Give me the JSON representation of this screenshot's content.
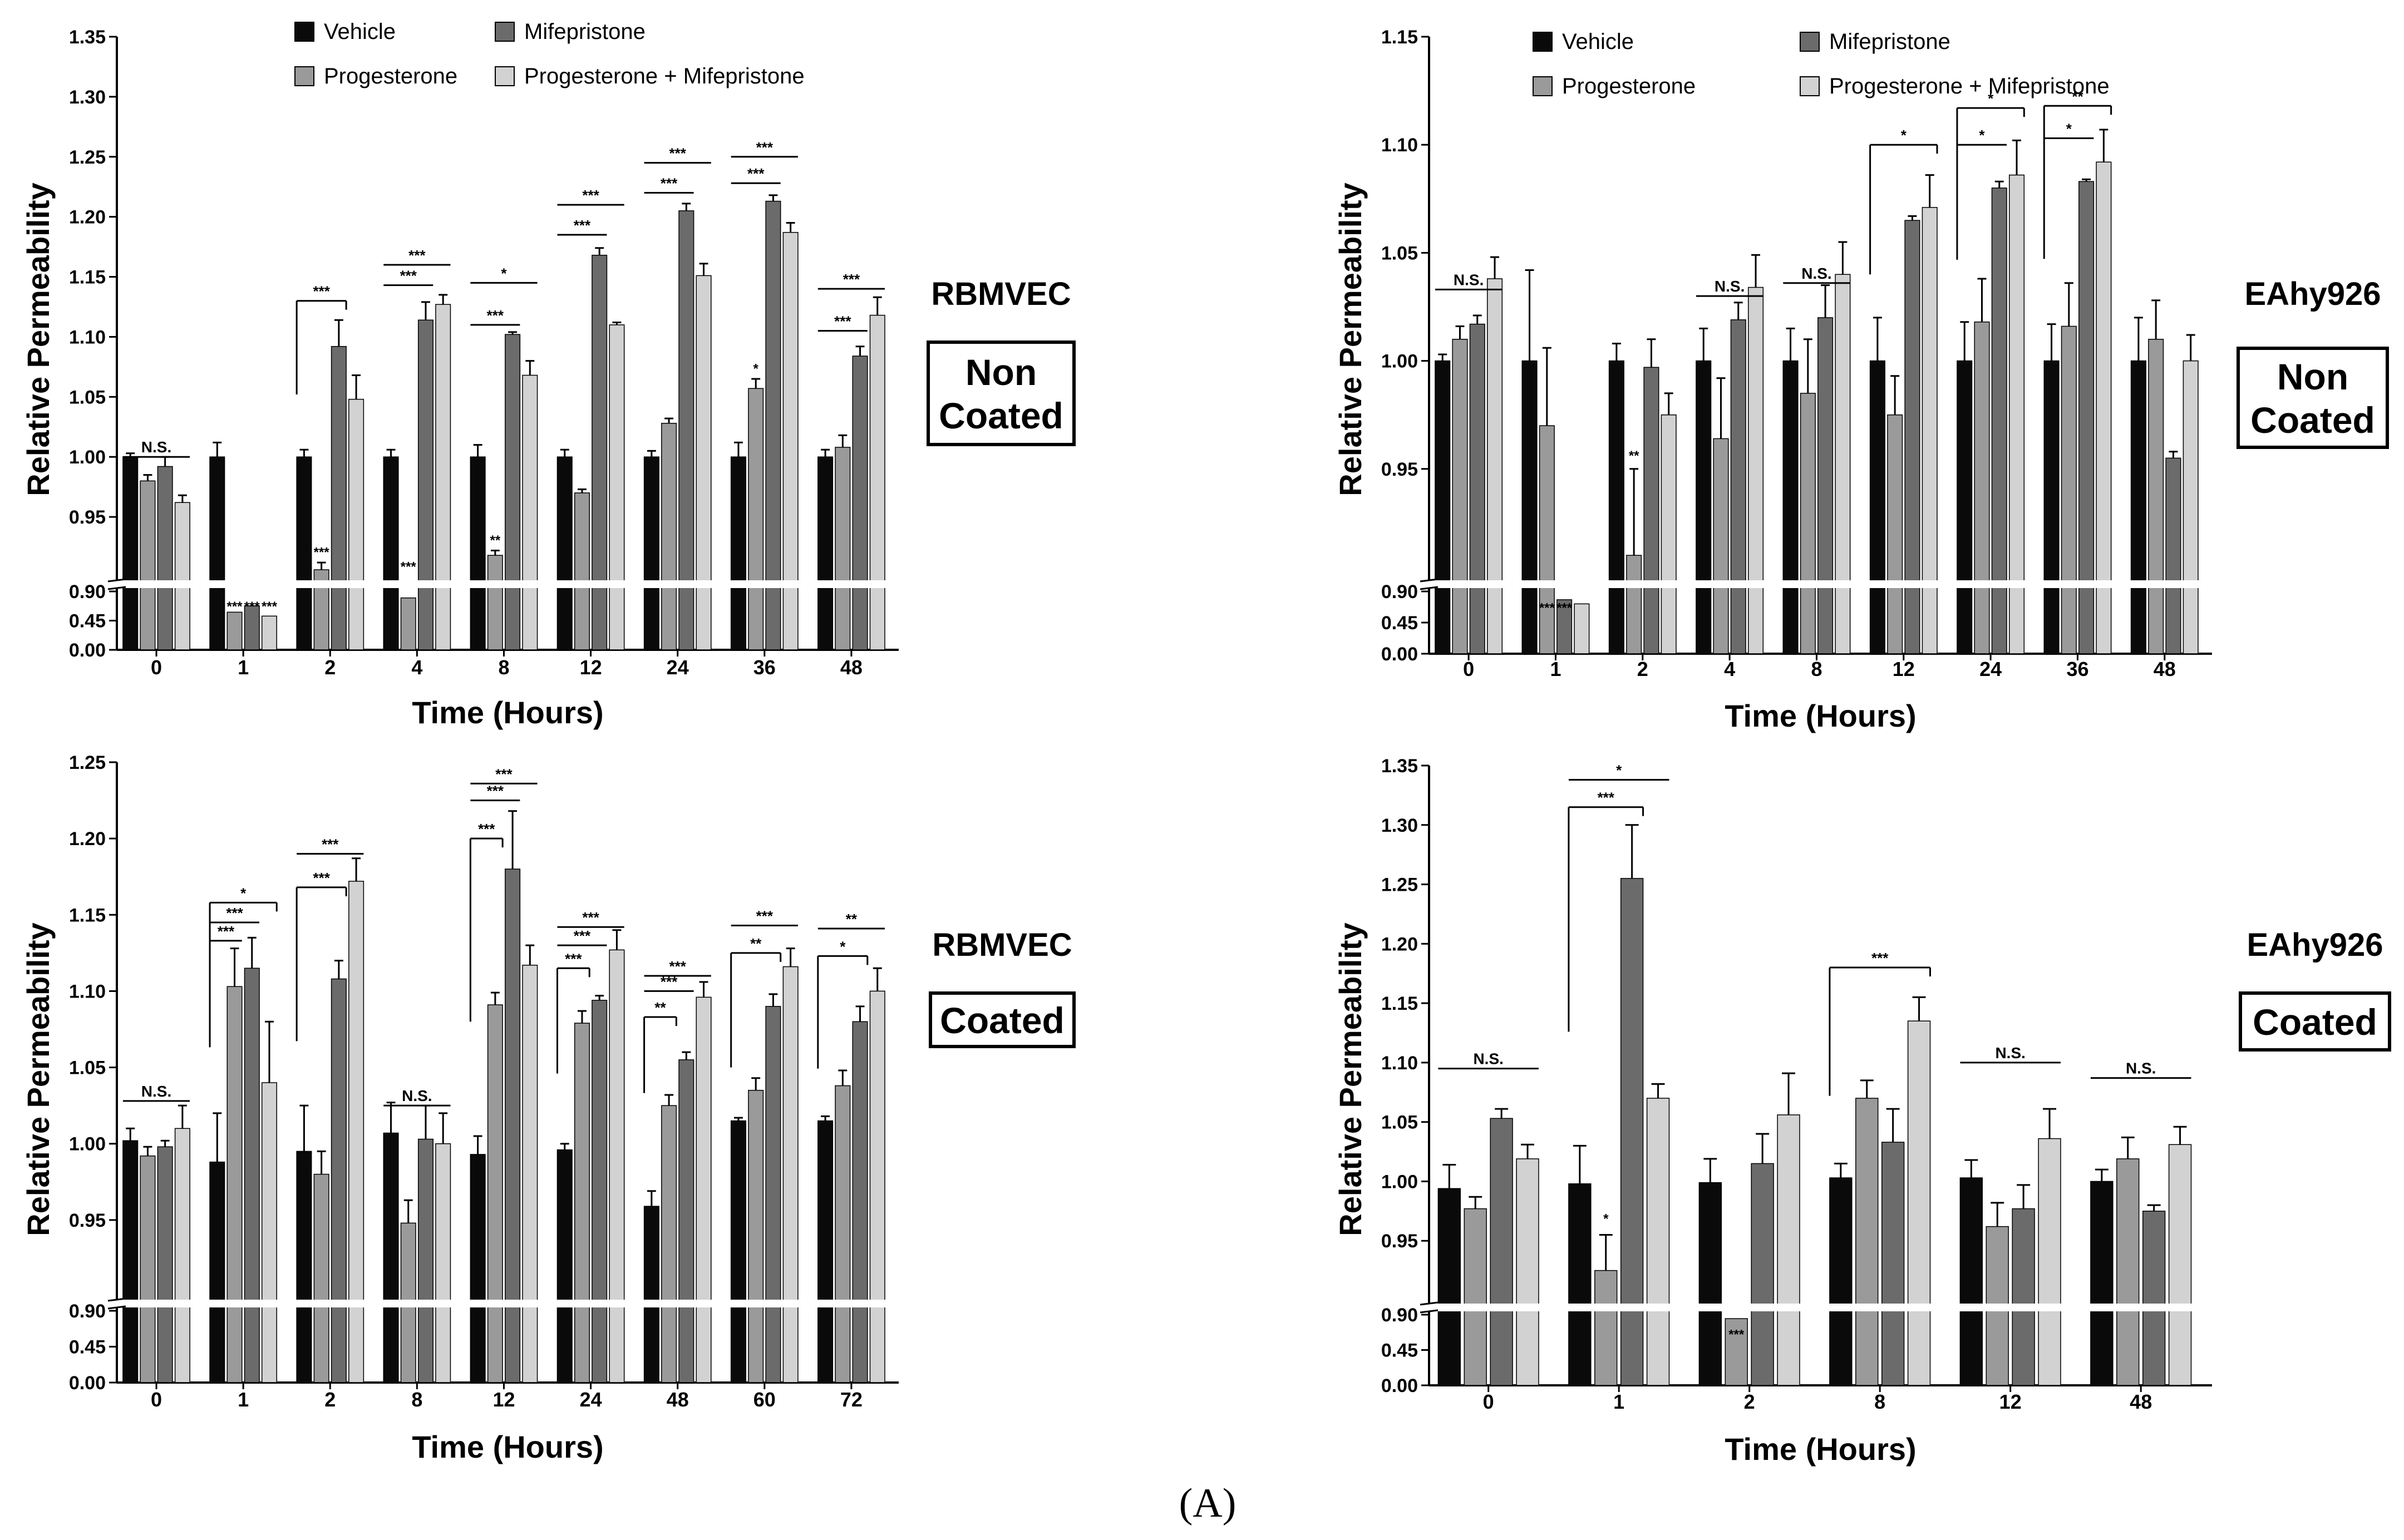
{
  "figure_label": "(A)",
  "colors": {
    "Vehicle": "#0a0a0a",
    "Progesterone": "#9a9a9a",
    "Mifepristone": "#6b6b6b",
    "Progesterone + Mifepristone": "#d2d2d2"
  },
  "chart_data": [
    {
      "type": "bar",
      "cell_line": "RBMVEC",
      "condition": [
        "Non",
        "Coated"
      ],
      "xlabel": "Time (Hours)",
      "ylabel": "Relative Permeability",
      "categories": [
        "0",
        "1",
        "2",
        "4",
        "8",
        "12",
        "24",
        "36",
        "48"
      ],
      "legend": [
        "Vehicle",
        "Progesterone",
        "Mifepristone",
        "Progesterone + Mifepristone"
      ],
      "yticks_low": [
        "0.00",
        "0.45",
        "0.90"
      ],
      "yticks_high": [
        "0.95",
        "1.00",
        "1.05",
        "1.10",
        "1.15",
        "1.20",
        "1.25",
        "1.30",
        "1.35"
      ],
      "ylim_high": [
        0.9,
        1.35
      ],
      "series": [
        {
          "name": "Vehicle",
          "values": [
            1.0,
            1.0,
            1.0,
            1.0,
            1.0,
            1.0,
            1.0,
            1.0,
            1.0
          ],
          "errors": [
            0.003,
            0.012,
            0.006,
            0.006,
            0.01,
            0.006,
            0.005,
            0.012,
            0.006
          ]
        },
        {
          "name": "Progesterone",
          "values": [
            0.98,
            0.58,
            0.906,
            0.8,
            0.918,
            0.97,
            1.028,
            1.057,
            1.008
          ],
          "errors": [
            0.005,
            0.0,
            0.006,
            0.0,
            0.004,
            0.003,
            0.004,
            0.008,
            0.01
          ]
        },
        {
          "name": "Mifepristone",
          "values": [
            0.992,
            0.68,
            1.092,
            1.114,
            1.102,
            1.168,
            1.205,
            1.213,
            1.084
          ],
          "errors": [
            0.008,
            0.0,
            0.022,
            0.015,
            0.002,
            0.006,
            0.006,
            0.005,
            0.008
          ]
        },
        {
          "name": "Progesterone + Mifepristone",
          "values": [
            0.962,
            0.52,
            1.048,
            1.127,
            1.068,
            1.11,
            1.151,
            1.187,
            1.118
          ],
          "errors": [
            0.006,
            0.0,
            0.02,
            0.008,
            0.012,
            0.002,
            0.01,
            0.008,
            0.015
          ]
        }
      ],
      "annotations": [
        {
          "cat": 0,
          "series": [
            0,
            3
          ],
          "y": 1.0,
          "text": "N.S.",
          "label_above": true
        },
        {
          "cat": 1,
          "series": 1,
          "y": 0.0,
          "low": true,
          "text": "***"
        },
        {
          "cat": 1,
          "series": 2,
          "y": 0.0,
          "low": true,
          "text": "***"
        },
        {
          "cat": 1,
          "series": 3,
          "y": 0.0,
          "low": true,
          "text": "***"
        },
        {
          "cat": 2,
          "series": [
            0,
            2
          ],
          "y": 1.13,
          "text": "***",
          "bracket": true
        },
        {
          "cat": 2,
          "series": 1,
          "y": 0.915,
          "text": "***"
        },
        {
          "cat": 3,
          "series": [
            0,
            2
          ],
          "y": 1.143,
          "text": "***"
        },
        {
          "cat": 3,
          "series": [
            0,
            3
          ],
          "y": 1.16,
          "text": "***"
        },
        {
          "cat": 3,
          "series": 1,
          "y": 0.903,
          "text": "***"
        },
        {
          "cat": 4,
          "series": [
            0,
            2
          ],
          "y": 1.11,
          "text": "***"
        },
        {
          "cat": 4,
          "series": [
            0,
            3
          ],
          "y": 1.145,
          "text": "*"
        },
        {
          "cat": 4,
          "series": 1,
          "y": 0.925,
          "text": "**"
        },
        {
          "cat": 5,
          "series": [
            0,
            2
          ],
          "y": 1.185,
          "text": "***"
        },
        {
          "cat": 5,
          "series": [
            0,
            3
          ],
          "y": 1.21,
          "text": "***"
        },
        {
          "cat": 6,
          "series": [
            0,
            2
          ],
          "y": 1.22,
          "text": "***"
        },
        {
          "cat": 6,
          "series": [
            0,
            3
          ],
          "y": 1.245,
          "text": "***"
        },
        {
          "cat": 7,
          "series": 1,
          "y": 1.068,
          "text": "*"
        },
        {
          "cat": 7,
          "series": [
            0,
            2
          ],
          "y": 1.228,
          "text": "***"
        },
        {
          "cat": 7,
          "series": [
            0,
            3
          ],
          "y": 1.25,
          "text": "***"
        },
        {
          "cat": 8,
          "series": [
            0,
            2
          ],
          "y": 1.105,
          "text": "***"
        },
        {
          "cat": 8,
          "series": [
            0,
            3
          ],
          "y": 1.14,
          "text": "***"
        }
      ]
    },
    {
      "type": "bar",
      "cell_line": "EAhy926",
      "condition": [
        "Non",
        "Coated"
      ],
      "xlabel": "Time (Hours)",
      "ylabel": "Relative Permeability",
      "categories": [
        "0",
        "1",
        "2",
        "4",
        "8",
        "12",
        "24",
        "36",
        "48"
      ],
      "legend": [
        "Vehicle",
        "Progesterone",
        "Mifepristone",
        "Progesterone + Mifepristone"
      ],
      "yticks_low": [
        "0.00",
        "0.45",
        "0.90"
      ],
      "yticks_high": [
        "0.95",
        "1.00",
        "1.05",
        "1.10",
        "1.15"
      ],
      "ylim_high": [
        0.9,
        1.15
      ],
      "series": [
        {
          "name": "Vehicle",
          "values": [
            1.0,
            1.0,
            1.0,
            1.0,
            1.0,
            1.0,
            1.0,
            1.0,
            1.0
          ],
          "errors": [
            0.003,
            0.042,
            0.008,
            0.015,
            0.015,
            0.02,
            0.018,
            0.017,
            0.02
          ]
        },
        {
          "name": "Progesterone",
          "values": [
            1.01,
            0.97,
            0.91,
            0.964,
            0.985,
            0.975,
            1.018,
            1.016,
            1.01
          ],
          "errors": [
            0.006,
            0.036,
            0.04,
            0.028,
            0.025,
            0.018,
            0.02,
            0.02,
            0.018
          ]
        },
        {
          "name": "Mifepristone",
          "values": [
            1.017,
            0.78,
            0.997,
            1.019,
            1.02,
            1.065,
            1.08,
            1.083,
            0.955
          ],
          "errors": [
            0.004,
            0.0,
            0.013,
            0.008,
            0.015,
            0.002,
            0.003,
            0.001,
            0.003
          ]
        },
        {
          "name": "Progesterone + Mifepristone",
          "values": [
            1.038,
            0.72,
            0.975,
            1.034,
            1.04,
            1.071,
            1.086,
            1.092,
            1.0
          ],
          "errors": [
            0.01,
            0.0,
            0.01,
            0.015,
            0.015,
            0.015,
            0.016,
            0.015,
            0.012
          ]
        }
      ],
      "annotations": [
        {
          "cat": 0,
          "series": [
            0,
            3
          ],
          "y": 1.033,
          "text": "N.S.",
          "label_above": true
        },
        {
          "cat": 1,
          "series": 1,
          "y": 0.0,
          "low": true,
          "text": "***"
        },
        {
          "cat": 1,
          "series": 2,
          "y": 0.0,
          "low": true,
          "text": "***"
        },
        {
          "cat": 2,
          "series": 1,
          "y": 0.953,
          "text": "**"
        },
        {
          "cat": 3,
          "series": [
            0,
            3
          ],
          "y": 1.03,
          "text": "N.S.",
          "label_above": true
        },
        {
          "cat": 4,
          "series": [
            0,
            3
          ],
          "y": 1.036,
          "text": "N.S.",
          "label_above": true
        },
        {
          "cat": 5,
          "series": [
            0,
            3
          ],
          "y": 1.1,
          "text": "*",
          "bracket": true
        },
        {
          "cat": 6,
          "series": [
            0,
            2
          ],
          "y": 1.1,
          "text": "*"
        },
        {
          "cat": 6,
          "series": [
            0,
            3
          ],
          "y": 1.117,
          "text": "*",
          "bracket": true
        },
        {
          "cat": 7,
          "series": [
            0,
            2
          ],
          "y": 1.103,
          "text": "*"
        },
        {
          "cat": 7,
          "series": [
            0,
            3
          ],
          "y": 1.118,
          "text": "**",
          "bracket": true
        }
      ]
    },
    {
      "type": "bar",
      "cell_line": "RBMVEC",
      "condition": [
        "Coated"
      ],
      "xlabel": "Time (Hours)",
      "ylabel": "Relative Permeability",
      "categories": [
        "0",
        "1",
        "2",
        "8",
        "12",
        "24",
        "48",
        "60",
        "72"
      ],
      "legend": [],
      "yticks_low": [
        "0.00",
        "0.45",
        "0.90"
      ],
      "yticks_high": [
        "0.95",
        "1.00",
        "1.05",
        "1.10",
        "1.15",
        "1.20",
        "1.25"
      ],
      "ylim_high": [
        0.9,
        1.25
      ],
      "series": [
        {
          "name": "Vehicle",
          "values": [
            1.002,
            0.988,
            0.995,
            1.007,
            0.993,
            0.996,
            0.959,
            1.015,
            1.015
          ],
          "errors": [
            0.008,
            0.032,
            0.03,
            0.02,
            0.012,
            0.004,
            0.01,
            0.002,
            0.003
          ]
        },
        {
          "name": "Progesterone",
          "values": [
            0.992,
            1.103,
            0.98,
            0.948,
            1.091,
            1.079,
            1.025,
            1.035,
            1.038
          ],
          "errors": [
            0.006,
            0.025,
            0.015,
            0.015,
            0.008,
            0.008,
            0.007,
            0.008,
            0.01
          ]
        },
        {
          "name": "Mifepristone",
          "values": [
            0.998,
            1.115,
            1.108,
            1.003,
            1.18,
            1.094,
            1.055,
            1.09,
            1.08
          ],
          "errors": [
            0.004,
            0.02,
            0.012,
            0.022,
            0.038,
            0.003,
            0.005,
            0.008,
            0.01
          ]
        },
        {
          "name": "Progesterone + Mifepristone",
          "values": [
            1.01,
            1.04,
            1.172,
            1.0,
            1.117,
            1.127,
            1.096,
            1.116,
            1.1
          ],
          "errors": [
            0.015,
            0.04,
            0.015,
            0.02,
            0.013,
            0.013,
            0.01,
            0.012,
            0.015
          ]
        }
      ],
      "annotations": [
        {
          "cat": 0,
          "series": [
            0,
            3
          ],
          "y": 1.028,
          "text": "N.S.",
          "label_above": true
        },
        {
          "cat": 1,
          "series": [
            0,
            1
          ],
          "y": 1.133,
          "text": "***"
        },
        {
          "cat": 1,
          "series": [
            0,
            2
          ],
          "y": 1.145,
          "text": "***"
        },
        {
          "cat": 1,
          "series": [
            0,
            3
          ],
          "y": 1.158,
          "text": "*",
          "bracket": true
        },
        {
          "cat": 2,
          "series": [
            0,
            2
          ],
          "y": 1.168,
          "text": "***",
          "bracket": true
        },
        {
          "cat": 2,
          "series": [
            0,
            3
          ],
          "y": 1.19,
          "text": "***"
        },
        {
          "cat": 3,
          "series": [
            0,
            3
          ],
          "y": 1.025,
          "text": "N.S.",
          "label_above": true
        },
        {
          "cat": 4,
          "series": [
            0,
            1
          ],
          "y": 1.2,
          "text": "***",
          "bracket": true
        },
        {
          "cat": 4,
          "series": [
            0,
            2
          ],
          "y": 1.225,
          "text": "***"
        },
        {
          "cat": 4,
          "series": [
            0,
            3
          ],
          "y": 1.236,
          "text": "***"
        },
        {
          "cat": 5,
          "series": [
            0,
            1
          ],
          "y": 1.115,
          "text": "***",
          "bracket": true
        },
        {
          "cat": 5,
          "series": [
            0,
            2
          ],
          "y": 1.13,
          "text": "***"
        },
        {
          "cat": 5,
          "series": [
            0,
            3
          ],
          "y": 1.142,
          "text": "***"
        },
        {
          "cat": 6,
          "series": [
            0,
            1
          ],
          "y": 1.083,
          "text": "**",
          "bracket": true
        },
        {
          "cat": 6,
          "series": [
            0,
            2
          ],
          "y": 1.1,
          "text": "***"
        },
        {
          "cat": 6,
          "series": [
            0,
            3
          ],
          "y": 1.11,
          "text": "***"
        },
        {
          "cat": 7,
          "series": [
            0,
            2
          ],
          "y": 1.125,
          "text": "**",
          "bracket": true
        },
        {
          "cat": 7,
          "series": [
            0,
            3
          ],
          "y": 1.143,
          "text": "***"
        },
        {
          "cat": 8,
          "series": [
            0,
            2
          ],
          "y": 1.123,
          "text": "*",
          "bracket": true
        },
        {
          "cat": 8,
          "series": [
            0,
            3
          ],
          "y": 1.141,
          "text": "**"
        }
      ]
    },
    {
      "type": "bar",
      "cell_line": "EAhy926",
      "condition": [
        "Coated"
      ],
      "xlabel": "Time (Hours)",
      "ylabel": "Relative Permeability",
      "categories": [
        "0",
        "1",
        "2",
        "8",
        "12",
        "48"
      ],
      "legend": [],
      "yticks_low": [
        "0.00",
        "0.45",
        "0.90"
      ],
      "yticks_high": [
        "0.95",
        "1.00",
        "1.05",
        "1.10",
        "1.15",
        "1.20",
        "1.25",
        "1.30",
        "1.35"
      ],
      "ylim_high": [
        0.9,
        1.35
      ],
      "series": [
        {
          "name": "Vehicle",
          "values": [
            0.994,
            0.998,
            0.999,
            1.003,
            1.003,
            1.0
          ],
          "errors": [
            0.02,
            0.032,
            0.02,
            0.012,
            0.015,
            0.01
          ]
        },
        {
          "name": "Progesterone",
          "values": [
            0.977,
            0.925,
            0.85,
            1.07,
            0.962,
            1.019
          ],
          "errors": [
            0.01,
            0.03,
            0.0,
            0.015,
            0.02,
            0.018
          ]
        },
        {
          "name": "Mifepristone",
          "values": [
            1.053,
            1.255,
            1.015,
            1.033,
            0.977,
            0.975
          ],
          "errors": [
            0.008,
            0.045,
            0.025,
            0.028,
            0.02,
            0.005
          ]
        },
        {
          "name": "Progesterone + Mifepristone",
          "values": [
            1.019,
            1.07,
            1.056,
            1.135,
            1.036,
            1.031
          ],
          "errors": [
            0.012,
            0.012,
            0.035,
            0.02,
            0.025,
            0.015
          ]
        }
      ],
      "annotations": [
        {
          "cat": 0,
          "series": [
            0,
            3
          ],
          "y": 1.095,
          "text": "N.S.",
          "label_above": true
        },
        {
          "cat": 1,
          "series": [
            0,
            2
          ],
          "y": 1.315,
          "text": "***",
          "bracket": true
        },
        {
          "cat": 1,
          "series": [
            0,
            3
          ],
          "y": 1.338,
          "text": "*"
        },
        {
          "cat": 1,
          "series": 1,
          "y": 0.963,
          "text": "*"
        },
        {
          "cat": 2,
          "series": 1,
          "y": 0.0,
          "low": true,
          "text": "***"
        },
        {
          "cat": 3,
          "series": [
            0,
            3
          ],
          "y": 1.18,
          "text": "***",
          "bracket": true
        },
        {
          "cat": 4,
          "series": [
            0,
            3
          ],
          "y": 1.1,
          "text": "N.S.",
          "label_above": true
        },
        {
          "cat": 5,
          "series": [
            0,
            3
          ],
          "y": 1.087,
          "text": "N.S.",
          "label_above": true
        }
      ]
    }
  ]
}
